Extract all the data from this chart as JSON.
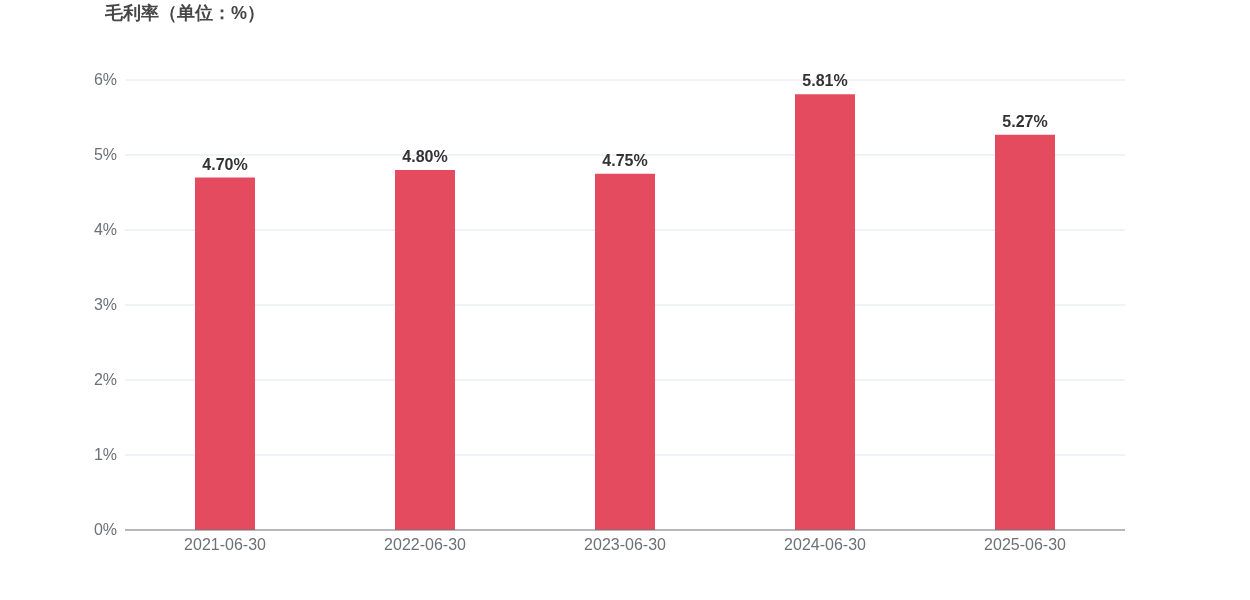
{
  "chart_data": {
    "type": "bar",
    "title": "毛利率（单位：%）",
    "categories": [
      "2021-06-30",
      "2022-06-30",
      "2023-06-30",
      "2024-06-30",
      "2025-06-30"
    ],
    "values": [
      4.7,
      4.8,
      4.75,
      5.81,
      5.27
    ],
    "value_labels": [
      "4.70%",
      "4.80%",
      "4.75%",
      "5.81%",
      "5.27%"
    ],
    "color": "#e54b5e",
    "ylim": [
      0,
      6
    ],
    "yticks": [
      {
        "value": 0,
        "label": "0%"
      },
      {
        "value": 1,
        "label": "1%"
      },
      {
        "value": 2,
        "label": "2%"
      },
      {
        "value": 3,
        "label": "3%"
      },
      {
        "value": 4,
        "label": "4%"
      },
      {
        "value": 5,
        "label": "5%"
      },
      {
        "value": 6,
        "label": "6%"
      }
    ],
    "grid": "y"
  }
}
